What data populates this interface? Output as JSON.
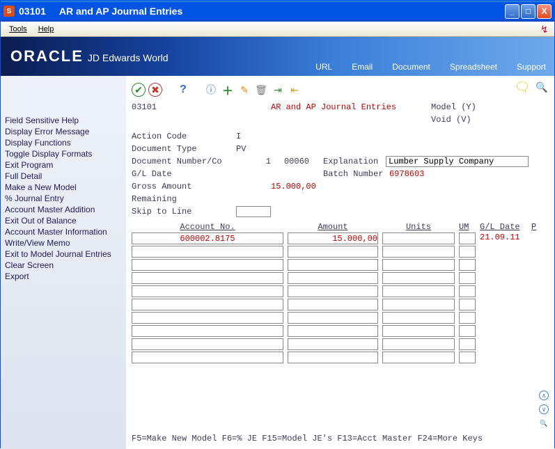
{
  "window": {
    "title_code": "03101",
    "title_text": "AR and AP Journal Entries"
  },
  "menubar": [
    "Tools",
    "Help"
  ],
  "banner": {
    "brand": "ORACLE",
    "sub": "JD Edwards World",
    "links": [
      "URL",
      "Email",
      "Document",
      "Spreadsheet",
      "Support"
    ]
  },
  "sidebar": [
    "Field Sensitive Help",
    "Display Error Message",
    "Display Functions",
    "Toggle Display Formats",
    "Exit Program",
    "Full Detail",
    "Make a New Model",
    "% Journal Entry",
    "Account Master Addition",
    "Exit Out of Balance",
    "Account Master Information",
    "Write/View Memo",
    "Exit to Model Journal Entries",
    "Clear Screen",
    "Export"
  ],
  "header": {
    "code": "03101",
    "screen_title": "AR and AP Journal Entries",
    "model_label": "Model (Y)",
    "void_label": "Void (V)"
  },
  "fields": {
    "action_code": {
      "label": "Action Code",
      "value": "I"
    },
    "doc_type": {
      "label": "Document Type",
      "value": "PV"
    },
    "doc_num": {
      "label": "Document Number/Co",
      "num": "1",
      "co": "00060"
    },
    "explanation": {
      "label": "Explanation",
      "value": "Lumber Supply Company"
    },
    "gl_date": {
      "label": "G/L Date",
      "value": ""
    },
    "batch": {
      "label": "Batch Number",
      "value": "6978603"
    },
    "gross": {
      "label": "Gross Amount",
      "value": "15.000,00"
    },
    "remaining": {
      "label": "Remaining"
    },
    "skip": {
      "label": "Skip to Line",
      "value": ""
    }
  },
  "grid": {
    "headers": {
      "account": "Account No.",
      "amount": "Amount",
      "units": "Units",
      "um": "UM",
      "gldate": "G/L Date",
      "p": "P"
    },
    "rows": [
      {
        "account": "600002.8175",
        "amount": "15.000,00",
        "units": "",
        "um": "",
        "gldate": "21.09.11",
        "p": ""
      },
      {
        "account": "",
        "amount": "",
        "units": "",
        "um": "",
        "gldate": "",
        "p": ""
      },
      {
        "account": "",
        "amount": "",
        "units": "",
        "um": "",
        "gldate": "",
        "p": ""
      },
      {
        "account": "",
        "amount": "",
        "units": "",
        "um": "",
        "gldate": "",
        "p": ""
      },
      {
        "account": "",
        "amount": "",
        "units": "",
        "um": "",
        "gldate": "",
        "p": ""
      },
      {
        "account": "",
        "amount": "",
        "units": "",
        "um": "",
        "gldate": "",
        "p": ""
      },
      {
        "account": "",
        "amount": "",
        "units": "",
        "um": "",
        "gldate": "",
        "p": ""
      },
      {
        "account": "",
        "amount": "",
        "units": "",
        "um": "",
        "gldate": "",
        "p": ""
      },
      {
        "account": "",
        "amount": "",
        "units": "",
        "um": "",
        "gldate": "",
        "p": ""
      },
      {
        "account": "",
        "amount": "",
        "units": "",
        "um": "",
        "gldate": "",
        "p": ""
      }
    ]
  },
  "fkeys": "F5=Make New Model  F6=% JE  F15=Model JE's  F13=Acct Master  F24=More Keys",
  "colors": {
    "title_gradient_start": "#3c8cde",
    "title_gradient_end": "#0054e3",
    "banner_start": "#0b1d50",
    "banner_end": "#6fa9eb",
    "sidebar_bg": "#dde4f0",
    "red_text": "#c00000",
    "label_text": "#3b3b5b"
  },
  "icons": {
    "ok": "✔",
    "cancel": "✖",
    "help": "?",
    "info": "ⓘ",
    "add": "＋",
    "edit": "✎",
    "delete": "🗑",
    "export": "⇥",
    "import": "⇤",
    "note": "🗨",
    "search": "🔍"
  }
}
